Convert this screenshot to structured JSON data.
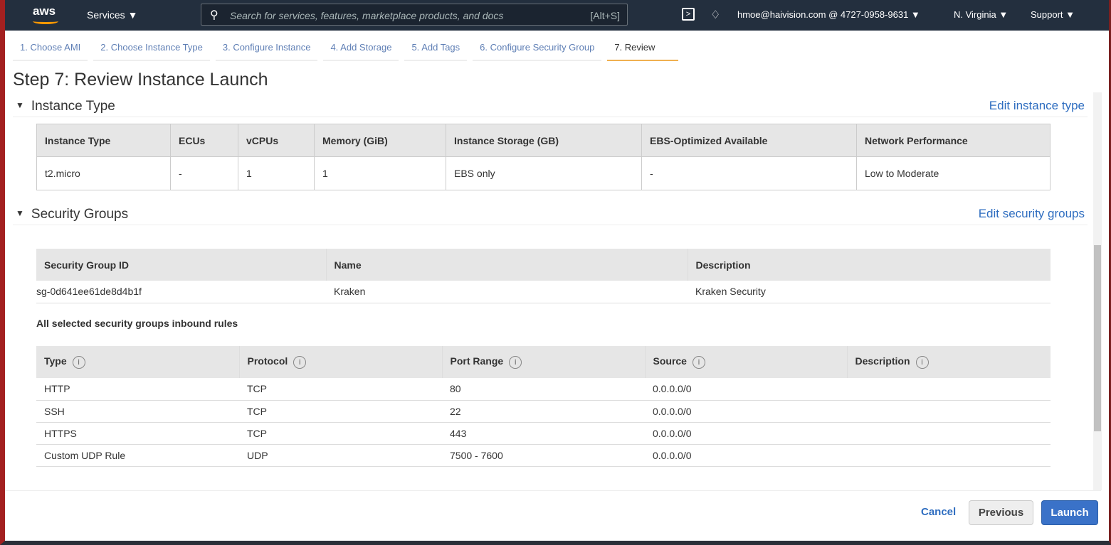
{
  "header": {
    "logo": "aws",
    "services": "Services ▼",
    "search_placeholder": "Search for services, features, marketplace products, and docs",
    "search_shortcut": "[Alt+S]",
    "account": "hmoe@haivision.com @ 4727-0958-9631 ▼",
    "region": "N. Virginia ▼",
    "support": "Support ▼"
  },
  "steps": [
    "1. Choose AMI",
    "2. Choose Instance Type",
    "3. Configure Instance",
    "4. Add Storage",
    "5. Add Tags",
    "6. Configure Security Group",
    "7. Review"
  ],
  "page_title": "Step 7: Review Instance Launch",
  "instance_type": {
    "title": "Instance Type",
    "edit": "Edit instance type",
    "columns": [
      "Instance Type",
      "ECUs",
      "vCPUs",
      "Memory (GiB)",
      "Instance Storage (GB)",
      "EBS-Optimized Available",
      "Network Performance"
    ],
    "row": [
      "t2.micro",
      "-",
      "1",
      "1",
      "EBS only",
      "-",
      "Low to Moderate"
    ]
  },
  "security_groups": {
    "title": "Security Groups",
    "edit": "Edit security groups",
    "columns": [
      "Security Group ID",
      "Name",
      "Description"
    ],
    "row": [
      "sg-0d641ee61de8d4b1f",
      "Kraken",
      "Kraken Security"
    ],
    "rules_title": "All selected security groups inbound rules",
    "rule_columns": [
      "Type",
      "Protocol",
      "Port Range",
      "Source",
      "Description"
    ],
    "rules": [
      [
        "HTTP",
        "TCP",
        "80",
        "0.0.0.0/0",
        ""
      ],
      [
        "SSH",
        "TCP",
        "22",
        "0.0.0.0/0",
        ""
      ],
      [
        "HTTPS",
        "TCP",
        "443",
        "0.0.0.0/0",
        ""
      ],
      [
        "Custom UDP Rule",
        "UDP",
        "7500 - 7600",
        "0.0.0.0/0",
        ""
      ]
    ]
  },
  "footer": {
    "cancel": "Cancel",
    "previous": "Previous",
    "launch": "Launch"
  }
}
